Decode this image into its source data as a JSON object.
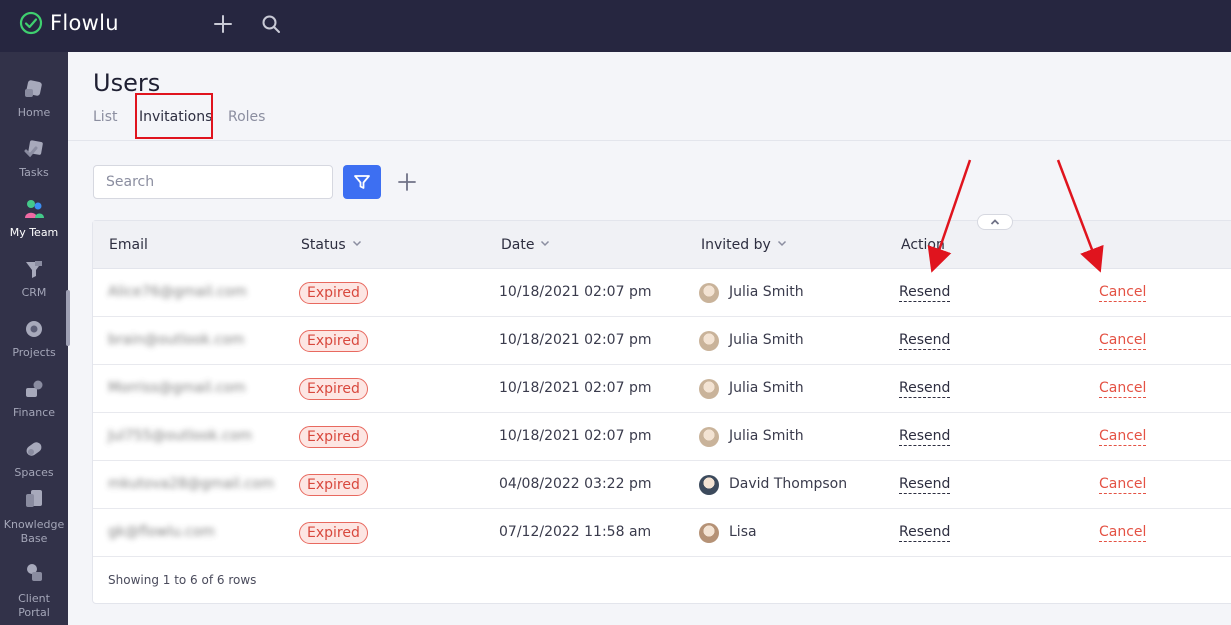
{
  "app": {
    "name": "Flowlu"
  },
  "sidebar": {
    "items": [
      {
        "label": "Home",
        "icon": "home-icon"
      },
      {
        "label": "Tasks",
        "icon": "tasks-icon"
      },
      {
        "label": "My Team",
        "icon": "team-icon",
        "active": true
      },
      {
        "label": "CRM",
        "icon": "crm-icon"
      },
      {
        "label": "Projects",
        "icon": "projects-icon"
      },
      {
        "label": "Finance",
        "icon": "finance-icon"
      },
      {
        "label": "Spaces",
        "icon": "spaces-icon"
      },
      {
        "label": "Knowledge",
        "label2": "Base",
        "icon": "knowledge-base-icon"
      },
      {
        "label": "Client",
        "label2": "Portal",
        "icon": "client-portal-icon"
      }
    ]
  },
  "header": {
    "title": "Users",
    "tabs": [
      "List",
      "Invitations",
      "Roles"
    ],
    "active_tab": "Invitations"
  },
  "toolbar": {
    "search_placeholder": "Search"
  },
  "table": {
    "columns": {
      "email": "Email",
      "status": "Status",
      "date": "Date",
      "invited_by": "Invited by",
      "action": "Action"
    },
    "rows": [
      {
        "email": "Alice76@gmail.com",
        "status": "Expired",
        "date": "10/18/2021 02:07 pm",
        "invited_by": "Julia Smith",
        "resend": "Resend",
        "cancel": "Cancel"
      },
      {
        "email": "brain@outlook.com",
        "status": "Expired",
        "date": "10/18/2021 02:07 pm",
        "invited_by": "Julia Smith",
        "resend": "Resend",
        "cancel": "Cancel"
      },
      {
        "email": "Morriss@gmail.com",
        "status": "Expired",
        "date": "10/18/2021 02:07 pm",
        "invited_by": "Julia Smith",
        "resend": "Resend",
        "cancel": "Cancel"
      },
      {
        "email": "Jul755@outlook.com",
        "status": "Expired",
        "date": "10/18/2021 02:07 pm",
        "invited_by": "Julia Smith",
        "resend": "Resend",
        "cancel": "Cancel"
      },
      {
        "email": "mkutova28@gmail.com",
        "status": "Expired",
        "date": "04/08/2022 03:22 pm",
        "invited_by": "David Thompson",
        "resend": "Resend",
        "cancel": "Cancel"
      },
      {
        "email": "gk@flowlu.com",
        "status": "Expired",
        "date": "07/12/2022 11:58 am",
        "invited_by": "Lisa",
        "resend": "Resend",
        "cancel": "Cancel"
      }
    ],
    "footer": "Showing 1 to 6 of 6 rows"
  },
  "colors": {
    "topbar": "#262640",
    "sidebar": "#323249",
    "accent": "#3d6ff2",
    "expired_badge": "#d8483d",
    "cancel_link": "#e45244",
    "annotation": "#e0141e"
  }
}
